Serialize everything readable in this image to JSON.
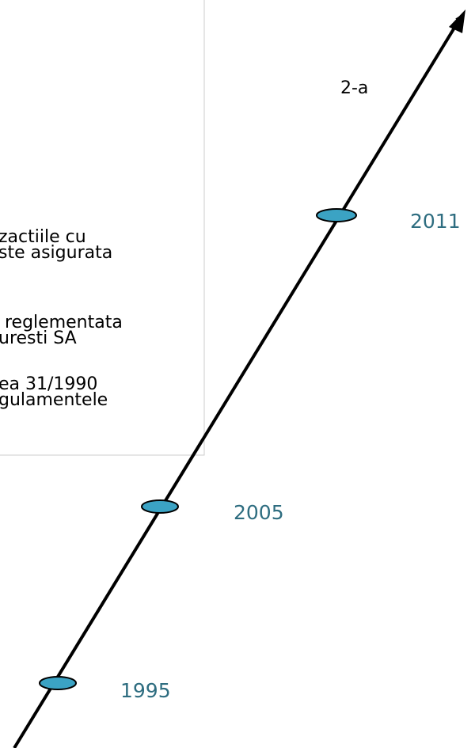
{
  "text_box": {
    "lines": [
      "2-a",
      "zactiile cu",
      "ste asigurata",
      "reglementata",
      "uresti SA",
      "ea 31/1990",
      "gulamentele"
    ]
  },
  "timeline": {
    "years": [
      "2011",
      "2005",
      "1995"
    ]
  }
}
